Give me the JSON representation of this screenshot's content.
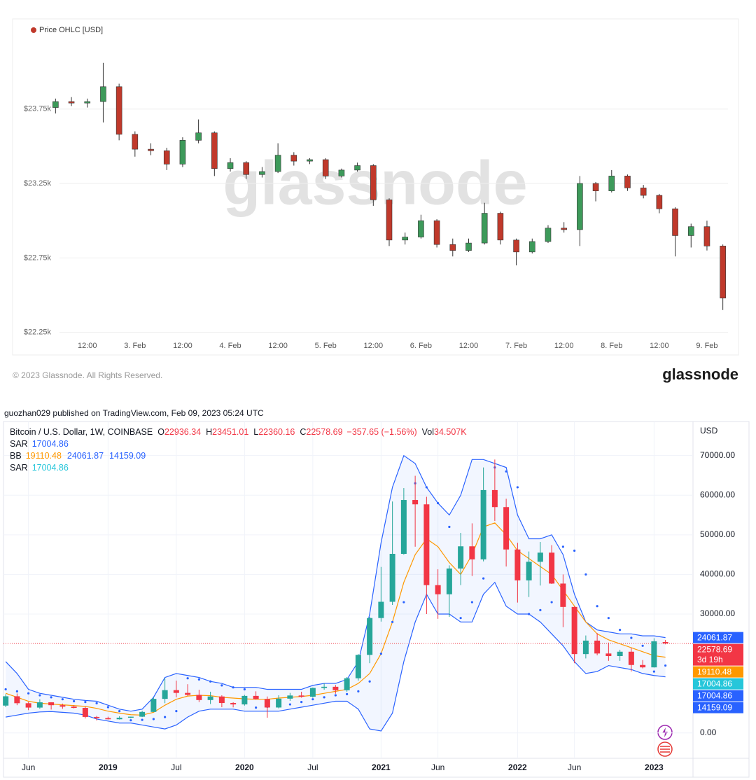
{
  "chart_data": [
    {
      "type": "candlestick",
      "watermark": "glassnode",
      "categories": [
        null,
        null,
        "12:00",
        null,
        null,
        "3. Feb",
        null,
        null,
        "12:00",
        null,
        null,
        "4. Feb",
        null,
        null,
        "12:00",
        null,
        null,
        "5. Feb",
        null,
        null,
        "12:00",
        null,
        null,
        "6. Feb",
        null,
        null,
        "12:00",
        null,
        null,
        "7. Feb",
        null,
        null,
        "12:00",
        null,
        null,
        "8. Feb",
        null,
        null,
        "12:00",
        null,
        null,
        "9. Feb",
        null
      ],
      "series": [
        {
          "name": "Price OHLC [USD]",
          "color": "#c0392b",
          "up_color": "#3d9a5a",
          "down_color": "#c0392b",
          "open": [
            23760,
            23800,
            23790,
            23800,
            23900,
            23580,
            23480,
            23470,
            23380,
            23540,
            23590,
            23350,
            23390,
            23310,
            23330,
            23440,
            23400,
            23410,
            23300,
            23340,
            23370,
            23140,
            22870,
            22890,
            23000,
            22840,
            22800,
            22850,
            23050,
            22870,
            22790,
            22860,
            22950,
            22940,
            23250,
            23200,
            23300,
            23220,
            23170,
            23080,
            22900,
            22960,
            22830
          ],
          "high": [
            23820,
            23830,
            23820,
            24060,
            23920,
            23600,
            23520,
            23490,
            23560,
            23680,
            23600,
            23420,
            23400,
            23360,
            23520,
            23460,
            23420,
            23420,
            23350,
            23390,
            23380,
            23150,
            22920,
            23040,
            23010,
            22880,
            22880,
            23120,
            23060,
            22880,
            22880,
            22970,
            22990,
            23300,
            23260,
            23340,
            23310,
            23240,
            23180,
            23090,
            22980,
            23000,
            22840
          ],
          "low": [
            23720,
            23770,
            23760,
            23660,
            23540,
            23430,
            23440,
            23340,
            23360,
            23520,
            23300,
            23330,
            23280,
            23290,
            23320,
            23370,
            23380,
            23280,
            23290,
            23330,
            23100,
            22830,
            22840,
            22880,
            22820,
            22760,
            22790,
            22840,
            22840,
            22700,
            22780,
            22850,
            22920,
            22830,
            23130,
            23190,
            23200,
            23150,
            23050,
            22760,
            22820,
            22800,
            22400
          ],
          "close": [
            23800,
            23790,
            23800,
            23900,
            23580,
            23480,
            23470,
            23380,
            23540,
            23590,
            23350,
            23390,
            23310,
            23330,
            23440,
            23400,
            23410,
            23300,
            23340,
            23370,
            23140,
            22870,
            22890,
            23000,
            22840,
            22800,
            22850,
            23050,
            22870,
            22790,
            22860,
            22950,
            22940,
            23250,
            23200,
            23300,
            23220,
            23170,
            23080,
            22900,
            22960,
            22830,
            22480
          ]
        }
      ],
      "ylim": [
        22225,
        24200
      ],
      "yticks": [
        {
          "value": 22250,
          "label": "$22.25k"
        },
        {
          "value": 22750,
          "label": "$22.75k"
        },
        {
          "value": 23250,
          "label": "$23.25k"
        },
        {
          "value": 23750,
          "label": "$23.75k"
        }
      ],
      "grid": true
    },
    {
      "type": "candlestick",
      "header": "guozhan029 published on TradingView.com, Feb 09, 2023 05:24 UTC",
      "axis_unit": "USD",
      "ohlc_labels": [
        "O",
        "H",
        "L",
        "C"
      ],
      "change": "−357.65 (−1.56%)",
      "volume_label": "Vol",
      "volume": "34.507K",
      "countdown": "3d 19h",
      "categories": [
        null,
        null,
        "Jun",
        null,
        null,
        null,
        null,
        null,
        null,
        "2019",
        null,
        null,
        null,
        null,
        null,
        "Jul",
        null,
        null,
        null,
        null,
        null,
        "2020",
        null,
        null,
        null,
        null,
        null,
        "Jul",
        null,
        null,
        null,
        null,
        null,
        "2021",
        null,
        null,
        null,
        null,
        "Jun",
        null,
        null,
        null,
        null,
        null,
        null,
        "2022",
        null,
        null,
        null,
        null,
        "Jun",
        null,
        null,
        null,
        null,
        null,
        null,
        "2023",
        null
      ],
      "series": [
        {
          "name": "Bitcoin / U.S. Dollar, 1W, COINBASE",
          "color": "#f23645",
          "up_color": "#26a69a",
          "down_color": "#f23645",
          "open": [
            6900,
            9250,
            7500,
            6400,
            7730,
            7000,
            6630,
            6320,
            4040,
            3740,
            3450,
            3850,
            4100,
            5300,
            8600,
            10800,
            10100,
            9600,
            8300,
            9200,
            7550,
            7200,
            9350,
            8550,
            6420,
            8650,
            9450,
            9150,
            11350,
            11650,
            10780,
            13800,
            19700,
            29000,
            33100,
            45200,
            58800,
            57700,
            37300,
            35000,
            41500,
            47100,
            43800,
            61300,
            57000,
            46300,
            38500,
            43200,
            45500,
            37700,
            31800,
            19900,
            23300,
            20050,
            19400,
            20500,
            17150,
            16550,
            22936.34
          ],
          "high": [
            9800,
            9950,
            7800,
            8500,
            7750,
            7400,
            7000,
            6600,
            4300,
            4100,
            4200,
            4120,
            5600,
            9000,
            13800,
            13200,
            12300,
            10900,
            10400,
            9500,
            7750,
            9600,
            10500,
            9200,
            9500,
            10100,
            10400,
            11450,
            12500,
            12100,
            14100,
            19900,
            29300,
            41900,
            58400,
            61800,
            64900,
            59600,
            41300,
            42300,
            50500,
            52900,
            67000,
            69000,
            59100,
            48000,
            45800,
            48200,
            47400,
            40000,
            31900,
            24600,
            25200,
            22800,
            21000,
            21500,
            18400,
            23900,
            23451.01
          ],
          "low": [
            6500,
            7000,
            5750,
            6100,
            5900,
            6100,
            6200,
            3650,
            3150,
            3400,
            3380,
            3700,
            4000,
            5300,
            7500,
            9000,
            9400,
            7800,
            7300,
            6500,
            6450,
            6900,
            8400,
            3850,
            6200,
            8100,
            8900,
            8900,
            10900,
            9900,
            10400,
            13200,
            17600,
            28100,
            32300,
            45000,
            47000,
            30000,
            28800,
            29300,
            37300,
            39600,
            43300,
            53500,
            42000,
            32900,
            34300,
            37200,
            37600,
            26700,
            17600,
            18800,
            19600,
            18200,
            18200,
            15500,
            16300,
            16500,
            22360.16
          ],
          "close": [
            9250,
            7500,
            6400,
            7730,
            7000,
            6630,
            6320,
            4040,
            3740,
            3450,
            3850,
            4100,
            5300,
            8600,
            10800,
            10100,
            9600,
            8300,
            9200,
            7550,
            7200,
            9350,
            8550,
            6420,
            8650,
            9450,
            9150,
            11350,
            11650,
            10780,
            13800,
            19700,
            29000,
            33100,
            45200,
            58800,
            57700,
            37300,
            35000,
            41500,
            47100,
            43800,
            61300,
            57000,
            46300,
            38500,
            43200,
            45500,
            37700,
            31800,
            19900,
            23300,
            20050,
            19400,
            20500,
            17150,
            16550,
            23130,
            22578.69
          ]
        }
      ],
      "bb": {
        "name": "BB",
        "color": "#2962ff",
        "basis_color": "#ff9800",
        "upper": [
          18000,
          15000,
          11000,
          10000,
          9500,
          9000,
          8500,
          8200,
          8000,
          7000,
          6000,
          5500,
          6000,
          9000,
          14000,
          15000,
          14500,
          14000,
          13000,
          12500,
          11500,
          11500,
          11500,
          11000,
          11000,
          11000,
          11000,
          12000,
          12500,
          12500,
          13500,
          18000,
          30000,
          48000,
          62000,
          70000,
          68000,
          62000,
          58000,
          55000,
          60000,
          69000,
          69000,
          68000,
          67000,
          55000,
          49000,
          49000,
          50000,
          45000,
          35000,
          28000,
          26000,
          25500,
          25000,
          25000,
          24500,
          24500,
          24061.87
        ],
        "basis": [
          10000,
          9000,
          8000,
          7500,
          7300,
          7100,
          6900,
          6700,
          6200,
          5500,
          5000,
          4600,
          4500,
          5200,
          7000,
          8500,
          9300,
          9500,
          9400,
          9000,
          8800,
          8600,
          8500,
          8500,
          8800,
          9000,
          9200,
          9500,
          10000,
          10500,
          11000,
          12500,
          15000,
          20000,
          28000,
          38000,
          45000,
          49000,
          47000,
          43000,
          40000,
          45000,
          52000,
          53000,
          50000,
          46000,
          44000,
          42000,
          40000,
          36000,
          32000,
          28000,
          25000,
          23500,
          22500,
          21500,
          20500,
          19500,
          19110.48
        ],
        "lower": [
          4000,
          4500,
          5000,
          5300,
          5400,
          5200,
          5000,
          4500,
          3500,
          3000,
          2500,
          2500,
          2000,
          1500,
          1000,
          2000,
          4000,
          5500,
          6000,
          6000,
          6000,
          5500,
          5500,
          5500,
          5500,
          6000,
          6500,
          7000,
          7500,
          8000,
          8000,
          6000,
          1000,
          500,
          5000,
          18000,
          28000,
          35000,
          30000,
          30000,
          28000,
          28000,
          35000,
          38000,
          32000,
          30000,
          30000,
          28000,
          25000,
          22000,
          18000,
          15000,
          15500,
          17000,
          16500,
          16000,
          15000,
          14500,
          14159.09
        ]
      },
      "sar": {
        "name": "SAR",
        "color": "#2962ff",
        "values": [
          11000,
          10500,
          10000,
          9500,
          9000,
          8500,
          8000,
          7800,
          7500,
          6500,
          5500,
          3200,
          3300,
          3500,
          4000,
          5500,
          13800,
          13500,
          13000,
          12000,
          11500,
          11000,
          6400,
          6600,
          6900,
          7200,
          7800,
          8500,
          9000,
          9500,
          9800,
          10500,
          13000,
          20000,
          28000,
          33000,
          63000,
          62000,
          58000,
          52000,
          29000,
          33000,
          39000,
          67000,
          66000,
          62000,
          30000,
          31000,
          33000,
          47000,
          46000,
          40000,
          32000,
          29000,
          26000,
          24000,
          22000,
          15500,
          17004.86
        ]
      },
      "sar2": {
        "name": "SAR",
        "color": "#26c6da",
        "value": 17004.86
      },
      "ylim": [
        -6400,
        78600
      ],
      "yticks": [
        {
          "value": 0,
          "label": "0.00"
        },
        {
          "value": 30000,
          "label": "30000.00"
        },
        {
          "value": 40000,
          "label": "40000.00"
        },
        {
          "value": 50000,
          "label": "50000.00"
        },
        {
          "value": 60000,
          "label": "60000.00"
        },
        {
          "value": 70000,
          "label": "70000.00"
        }
      ],
      "grid": true
    }
  ],
  "footer": {
    "copyright": "© 2023 Glassnode. All Rights Reserved.",
    "logo": "glassnode"
  }
}
